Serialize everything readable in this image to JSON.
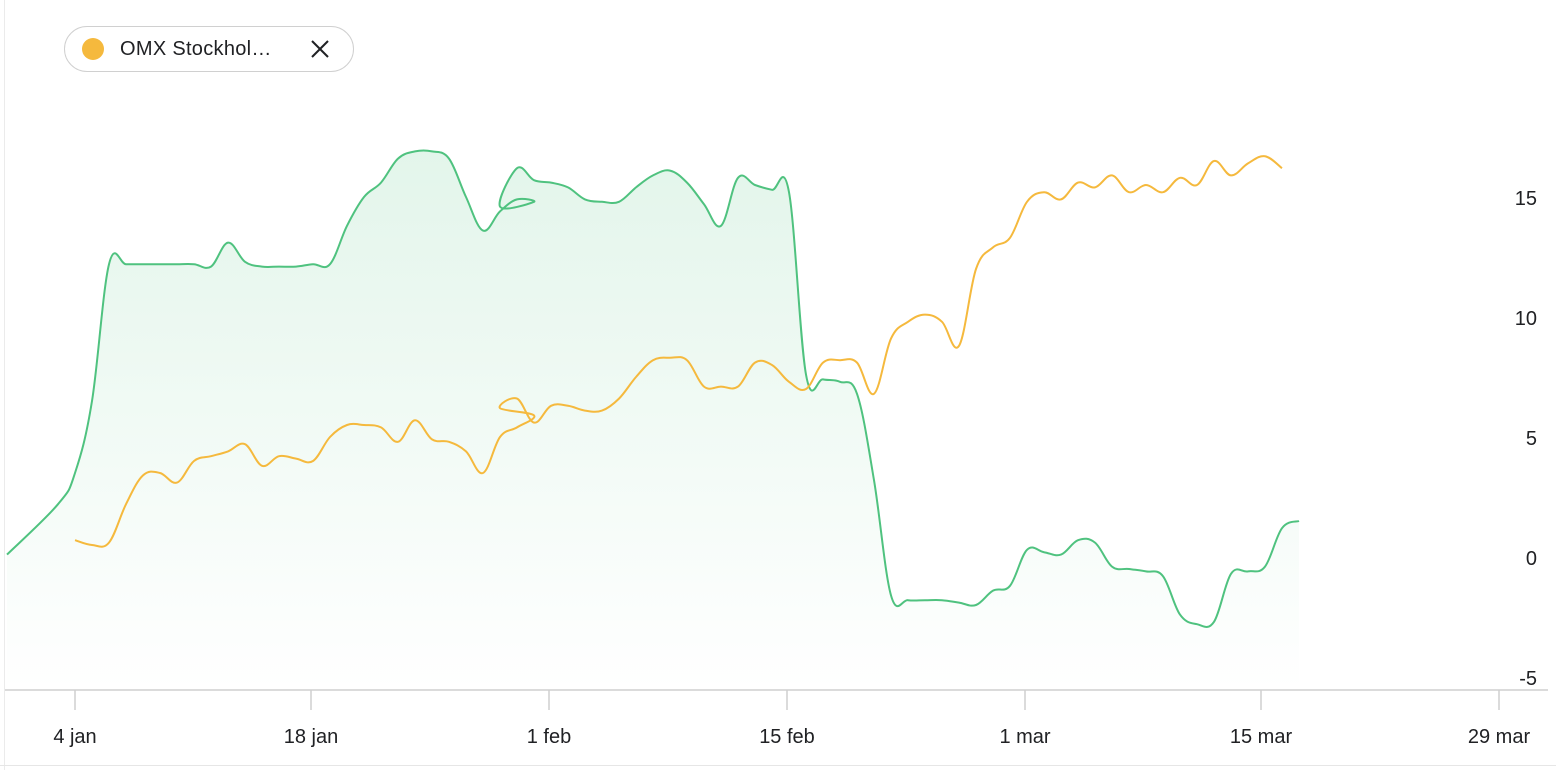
{
  "legend": {
    "label": "OMX Stockhol…",
    "color": "#f5b93d",
    "close_icon": "close-icon"
  },
  "chart_data": {
    "type": "area",
    "grid": false,
    "legend_placement": "top-left",
    "x_ticks": [
      "4 jan",
      "18 jan",
      "1 feb",
      "15 feb",
      "1 mar",
      "15 mar",
      "29 mar"
    ],
    "y_ticks": [
      "15",
      "10",
      "5",
      "0",
      "-5"
    ],
    "ylim": [
      -5,
      17
    ],
    "colors": {
      "green": "#4fc27f",
      "yellow": "#f5b93d"
    },
    "series": [
      {
        "color": "#4fc27f",
        "fill": true,
        "points": [
          [
            "2021-01-00",
            0.1
          ],
          [
            "2021-01-03",
            2.2
          ],
          [
            "2021-01-04",
            3.5
          ],
          [
            "2021-01-05",
            6.5
          ],
          [
            "2021-01-06",
            12.2
          ],
          [
            "2021-01-07",
            12.2
          ],
          [
            "2021-01-08",
            12.2
          ],
          [
            "2021-01-09",
            12.2
          ],
          [
            "2021-01-10",
            12.2
          ],
          [
            "2021-01-11",
            12.2
          ],
          [
            "2021-01-12",
            12.1
          ],
          [
            "2021-01-13",
            13.1
          ],
          [
            "2021-01-14",
            12.3
          ],
          [
            "2021-01-15",
            12.1
          ],
          [
            "2021-01-16",
            12.1
          ],
          [
            "2021-01-17",
            12.1
          ],
          [
            "2021-01-18",
            12.2
          ],
          [
            "2021-01-19",
            12.2
          ],
          [
            "2021-01-20",
            13.8
          ],
          [
            "2021-01-21",
            15.0
          ],
          [
            "2021-01-22",
            15.6
          ],
          [
            "2021-01-23",
            16.6
          ],
          [
            "2021-01-24",
            16.9
          ],
          [
            "2021-01-25",
            16.9
          ],
          [
            "2021-01-26",
            16.6
          ],
          [
            "2021-01-27",
            15.0
          ],
          [
            "2021-01-28",
            13.6
          ],
          [
            "2021-01-29",
            14.4
          ],
          [
            "2021-01-30",
            14.9
          ],
          [
            "2021-01-31",
            14.8
          ],
          [
            "2021-02-01",
            14.6
          ],
          [
            "2021-02-02",
            16.2
          ],
          [
            "2021-02-03",
            15.7
          ],
          [
            "2021-02-04",
            15.6
          ],
          [
            "2021-02-05",
            15.4
          ],
          [
            "2021-02-06",
            14.9
          ],
          [
            "2021-02-07",
            14.8
          ],
          [
            "2021-02-08",
            14.8
          ],
          [
            "2021-02-09",
            15.4
          ],
          [
            "2021-02-10",
            15.9
          ],
          [
            "2021-02-11",
            16.1
          ],
          [
            "2021-02-12",
            15.6
          ],
          [
            "2021-02-13",
            14.7
          ],
          [
            "2021-02-14",
            13.8
          ],
          [
            "2021-02-15",
            15.8
          ],
          [
            "2021-02-16",
            15.5
          ],
          [
            "2021-02-17",
            15.3
          ],
          [
            "2021-02-18",
            15.2
          ],
          [
            "2021-02-19",
            7.6
          ],
          [
            "2021-02-20",
            7.4
          ],
          [
            "2021-02-21",
            7.3
          ],
          [
            "2021-02-22",
            6.8
          ],
          [
            "2021-02-23",
            3.2
          ],
          [
            "2021-02-24",
            -1.6
          ],
          [
            "2021-02-25",
            -1.8
          ],
          [
            "2021-02-26",
            -1.8
          ],
          [
            "2021-02-27",
            -1.8
          ],
          [
            "2021-02-28",
            -1.9
          ],
          [
            "2021-03-01",
            -2.0
          ],
          [
            "2021-03-02",
            -1.4
          ],
          [
            "2021-03-03",
            -1.2
          ],
          [
            "2021-03-04",
            0.3
          ],
          [
            "2021-03-05",
            0.2
          ],
          [
            "2021-03-06",
            0.1
          ],
          [
            "2021-03-07",
            0.7
          ],
          [
            "2021-03-08",
            0.6
          ],
          [
            "2021-03-09",
            -0.4
          ],
          [
            "2021-03-10",
            -0.5
          ],
          [
            "2021-03-11",
            -0.6
          ],
          [
            "2021-03-12",
            -0.8
          ],
          [
            "2021-03-13",
            -2.4
          ],
          [
            "2021-03-14",
            -2.8
          ],
          [
            "2021-03-15",
            -2.7
          ],
          [
            "2021-03-16",
            -0.7
          ],
          [
            "2021-03-17",
            -0.6
          ],
          [
            "2021-03-18",
            -0.4
          ],
          [
            "2021-03-19",
            1.2
          ],
          [
            "2021-03-20",
            1.5
          ]
        ]
      },
      {
        "color": "#f5b93d",
        "fill": false,
        "points": [
          [
            "2021-01-04",
            0.7
          ],
          [
            "2021-01-05",
            0.5
          ],
          [
            "2021-01-06",
            0.6
          ],
          [
            "2021-01-07",
            2.2
          ],
          [
            "2021-01-08",
            3.4
          ],
          [
            "2021-01-09",
            3.5
          ],
          [
            "2021-01-10",
            3.1
          ],
          [
            "2021-01-11",
            4.0
          ],
          [
            "2021-01-12",
            4.2
          ],
          [
            "2021-01-13",
            4.4
          ],
          [
            "2021-01-14",
            4.7
          ],
          [
            "2021-01-15",
            3.8
          ],
          [
            "2021-01-16",
            4.2
          ],
          [
            "2021-01-17",
            4.1
          ],
          [
            "2021-01-18",
            4.0
          ],
          [
            "2021-01-19",
            5.0
          ],
          [
            "2021-01-20",
            5.5
          ],
          [
            "2021-01-21",
            5.5
          ],
          [
            "2021-01-22",
            5.4
          ],
          [
            "2021-01-23",
            4.8
          ],
          [
            "2021-01-24",
            5.7
          ],
          [
            "2021-01-25",
            4.9
          ],
          [
            "2021-01-26",
            4.8
          ],
          [
            "2021-01-27",
            4.4
          ],
          [
            "2021-01-28",
            3.5
          ],
          [
            "2021-01-29",
            5.0
          ],
          [
            "2021-01-30",
            5.4
          ],
          [
            "2021-01-31",
            5.9
          ],
          [
            "2021-02-01",
            6.2
          ],
          [
            "2021-02-02",
            6.6
          ],
          [
            "2021-02-03",
            5.6
          ],
          [
            "2021-02-04",
            6.3
          ],
          [
            "2021-02-05",
            6.3
          ],
          [
            "2021-02-06",
            6.1
          ],
          [
            "2021-02-07",
            6.1
          ],
          [
            "2021-02-08",
            6.6
          ],
          [
            "2021-02-09",
            7.5
          ],
          [
            "2021-02-10",
            8.2
          ],
          [
            "2021-02-11",
            8.3
          ],
          [
            "2021-02-12",
            8.2
          ],
          [
            "2021-02-13",
            7.1
          ],
          [
            "2021-02-14",
            7.1
          ],
          [
            "2021-02-15",
            7.1
          ],
          [
            "2021-02-16",
            8.1
          ],
          [
            "2021-02-17",
            8.0
          ],
          [
            "2021-02-18",
            7.3
          ],
          [
            "2021-02-19",
            7.0
          ],
          [
            "2021-02-20",
            8.1
          ],
          [
            "2021-02-21",
            8.2
          ],
          [
            "2021-02-22",
            8.1
          ],
          [
            "2021-02-23",
            6.8
          ],
          [
            "2021-02-24",
            9.1
          ],
          [
            "2021-02-25",
            9.8
          ],
          [
            "2021-02-26",
            10.1
          ],
          [
            "2021-02-27",
            9.8
          ],
          [
            "2021-02-28",
            8.8
          ],
          [
            "2021-03-01",
            12.0
          ],
          [
            "2021-03-02",
            12.9
          ],
          [
            "2021-03-03",
            13.3
          ],
          [
            "2021-03-04",
            14.8
          ],
          [
            "2021-03-05",
            15.2
          ],
          [
            "2021-03-06",
            14.9
          ],
          [
            "2021-03-07",
            15.6
          ],
          [
            "2021-03-08",
            15.4
          ],
          [
            "2021-03-09",
            15.9
          ],
          [
            "2021-03-10",
            15.2
          ],
          [
            "2021-03-11",
            15.5
          ],
          [
            "2021-03-12",
            15.2
          ],
          [
            "2021-03-13",
            15.8
          ],
          [
            "2021-03-14",
            15.5
          ],
          [
            "2021-03-15",
            16.5
          ],
          [
            "2021-03-16",
            15.9
          ],
          [
            "2021-03-17",
            16.4
          ],
          [
            "2021-03-18",
            16.7
          ],
          [
            "2021-03-19",
            16.2
          ]
        ]
      }
    ]
  }
}
